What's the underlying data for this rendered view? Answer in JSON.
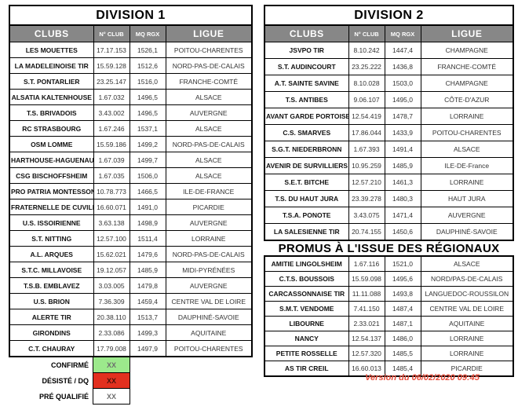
{
  "colors": {
    "header_bg": "#878787",
    "header_text": "#ffffff",
    "confirmed_green": "#9ce98c",
    "withdrawn_red": "#e2301f",
    "prequalified_white": "#ffffff",
    "legend_xx_gray": "#6e6e6e",
    "legend_xx_dark": "#49100a",
    "version_red": "#e8503f"
  },
  "division1": {
    "title": "DIVISION 1",
    "columns": {
      "clubs": "CLUBS",
      "num": "N° CLUB",
      "mq": "MQ RGX",
      "ligue": "LIGUE"
    },
    "rows": [
      {
        "club": "LES MOUETTES",
        "num": "17.17.153",
        "mq": "1526,1",
        "ligue": "POITOU-CHARENTES"
      },
      {
        "club": "LA MADELEINOISE TIR",
        "num": "15.59.128",
        "mq": "1512,6",
        "ligue": "NORD-PAS-DE-CALAIS"
      },
      {
        "club": "S.T. PONTARLIER",
        "num": "23.25.147",
        "mq": "1516,0",
        "ligue": "FRANCHE-COMTÉ"
      },
      {
        "club": "ALSATIA KALTENHOUSE",
        "num": "1.67.032",
        "mq": "1496,5",
        "ligue": "ALSACE"
      },
      {
        "club": "T.S. BRIVADOIS",
        "num": "3.43.002",
        "mq": "1496,5",
        "ligue": "AUVERGNE"
      },
      {
        "club": "RC STRASBOURG",
        "num": "1.67.246",
        "mq": "1537,1",
        "ligue": "ALSACE"
      },
      {
        "club": "OSM LOMME",
        "num": "15.59.186",
        "mq": "1499,2",
        "ligue": "NORD-PAS-DE-CALAIS"
      },
      {
        "club": "HARTHOUSE-HAGUENAU",
        "num": "1.67.039",
        "mq": "1499,7",
        "ligue": "ALSACE"
      },
      {
        "club": "CSG BISCHOFFSHEIM",
        "num": "1.67.035",
        "mq": "1506,0",
        "ligue": "ALSACE"
      },
      {
        "club": "PRO PATRIA MONTESSON",
        "num": "10.78.773",
        "mq": "1466,5",
        "ligue": "ILE-DE-FRANCE"
      },
      {
        "club": "FRATERNELLE DE CUVILLY",
        "num": "16.60.071",
        "mq": "1491,0",
        "ligue": "PICARDIE"
      },
      {
        "club": "U.S. ISSOIRIENNE",
        "num": "3.63.138",
        "mq": "1498,9",
        "ligue": "AUVERGNE"
      },
      {
        "club": "S.T. NITTING",
        "num": "12.57.100",
        "mq": "1511,4",
        "ligue": "LORRAINE"
      },
      {
        "club": "A.L. ARQUES",
        "num": "15.62.021",
        "mq": "1479,6",
        "ligue": "NORD-PAS-DE-CALAIS"
      },
      {
        "club": "S.T.C. MILLAVOISE",
        "num": "19.12.057",
        "mq": "1485,9",
        "ligue": "MIDI-PYRÉNÉES"
      },
      {
        "club": "T.S.B. EMBLAVEZ",
        "num": "3.03.005",
        "mq": "1479,8",
        "ligue": "AUVERGNE"
      },
      {
        "club": "U.S. BRION",
        "num": "7.36.309",
        "mq": "1459,4",
        "ligue": "CENTRE VAL DE LOIRE"
      },
      {
        "club": "ALERTE TIR",
        "num": "20.38.110",
        "mq": "1513,7",
        "ligue": "DAUPHINÉ-SAVOIE"
      },
      {
        "club": "GIRONDINS",
        "num": "2.33.086",
        "mq": "1499,3",
        "ligue": "AQUITAINE"
      },
      {
        "club": "C.T. CHAURAY",
        "num": "17.79.008",
        "mq": "1497,9",
        "ligue": "POITOU-CHARENTES"
      }
    ]
  },
  "division2": {
    "title": "DIVISION 2",
    "columns": {
      "clubs": "CLUBS",
      "num": "N° CLUB",
      "mq": "MQ RGX",
      "ligue": "LIGUE"
    },
    "rows": [
      {
        "club": "JSVPO TIR",
        "num": "8.10.242",
        "mq": "1447,4",
        "ligue": "CHAMPAGNE"
      },
      {
        "club": "S.T. AUDINCOURT",
        "num": "23.25.222",
        "mq": "1436,8",
        "ligue": "FRANCHE-COMTÉ"
      },
      {
        "club": "A.T. SAINTE SAVINE",
        "num": "8.10.028",
        "mq": "1503,0",
        "ligue": "CHAMPAGNE"
      },
      {
        "club": "T.S. ANTIBES",
        "num": "9.06.107",
        "mq": "1495,0",
        "ligue": "CÔTE-D'AZUR"
      },
      {
        "club": "AVANT GARDE PORTOISE",
        "num": "12.54.419",
        "mq": "1478,7",
        "ligue": "LORRAINE"
      },
      {
        "club": "C.S. SMARVES",
        "num": "17.86.044",
        "mq": "1433,9",
        "ligue": "POITOU-CHARENTES"
      },
      {
        "club": "S.G.T. NIEDERBRONN",
        "num": "1.67.393",
        "mq": "1491,4",
        "ligue": "ALSACE"
      },
      {
        "club": "AVENIR DE SURVILLIERS",
        "num": "10.95.259",
        "mq": "1485,9",
        "ligue": "ILE-DE-France"
      },
      {
        "club": "S.E.T. BITCHE",
        "num": "12.57.210",
        "mq": "1461,3",
        "ligue": "LORRAINE"
      },
      {
        "club": "T.S. DU HAUT JURA",
        "num": "23.39.278",
        "mq": "1480,3",
        "ligue": "HAUT JURA"
      },
      {
        "club": "T.S.A. PONOTE",
        "num": "3.43.075",
        "mq": "1471,4",
        "ligue": "AUVERGNE"
      },
      {
        "club": "LA SALESIENNE TIR",
        "num": "20.74.155",
        "mq": "1450,6",
        "ligue": "DAUPHINÉ-SAVOIE"
      }
    ]
  },
  "promus": {
    "title": "PROMUS À L'ISSUE DES RÉGIONAUX",
    "rows": [
      {
        "club": "AMITIE LINGOLSHEIM",
        "num": "1.67.116",
        "mq": "1521,0",
        "ligue": "ALSACE"
      },
      {
        "club": "C.T.S. BOUSSOIS",
        "num": "15.59.098",
        "mq": "1495,6",
        "ligue": "NORD/PAS-DE-CALAIS"
      },
      {
        "club": "CARCASSONNAISE TIR",
        "num": "11.11.088",
        "mq": "1493,8",
        "ligue": "LANGUEDOC-ROUSSILON"
      },
      {
        "club": "S.M.T. VENDOME",
        "num": "7.41.150",
        "mq": "1487,4",
        "ligue": "CENTRE VAL DE LOIRE"
      },
      {
        "club": "LIBOURNE",
        "num": "2.33.021",
        "mq": "1487,1",
        "ligue": "AQUITAINE"
      },
      {
        "club": "NANCY",
        "num": "12.54.137",
        "mq": "1486,0",
        "ligue": "LORRAINE"
      },
      {
        "club": "PETITE ROSSELLE",
        "num": "12.57.320",
        "mq": "1485,5",
        "ligue": "LORRAINE"
      },
      {
        "club": "AS TIR CREIL",
        "num": "16.60.013",
        "mq": "1485,4",
        "ligue": "PICARDIE"
      }
    ]
  },
  "legend": {
    "items": [
      {
        "label": "CONFIRMÉ",
        "value": "XX"
      },
      {
        "label": "DÉSISTÉ / DQ",
        "value": "XX"
      },
      {
        "label": "PRÉ QUALIFIÉ",
        "value": "XX"
      }
    ]
  },
  "footer": {
    "version": "Version du  06/02/2020 09:45"
  }
}
